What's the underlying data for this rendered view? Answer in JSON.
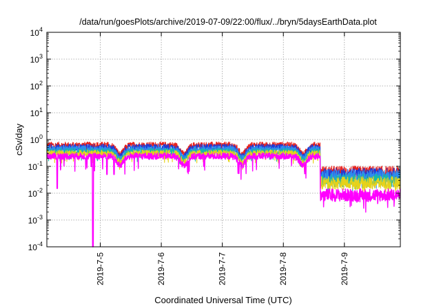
{
  "chart_data": {
    "type": "line",
    "title": "/data/run/goesPlots/archive/2019-07-09/22:00/flux/../bryn/5daysEarthData.plot",
    "xlabel": "Coordinated Universal Time (UTC)",
    "ylabel": "cSv/day",
    "yscale": "log",
    "ylim": [
      0.0001,
      10000
    ],
    "xlim": [
      "2019-07-04T03:00",
      "2019-07-09T22:00"
    ],
    "grid": true,
    "x_ticks": [
      "2019-7-5",
      "2019-7-6",
      "2019-7-7",
      "2019-7-8",
      "2019-7-9"
    ],
    "y_ticks": [
      {
        "base": "10",
        "exp": "-4"
      },
      {
        "base": "10",
        "exp": "-3"
      },
      {
        "base": "10",
        "exp": "-2"
      },
      {
        "base": "10",
        "exp": "-1"
      },
      {
        "base": "10",
        "exp": "0"
      },
      {
        "base": "10",
        "exp": "1"
      },
      {
        "base": "10",
        "exp": "2"
      },
      {
        "base": "10",
        "exp": "3"
      },
      {
        "base": "10",
        "exp": "4"
      }
    ],
    "step_time": "2019-07-08T14:30",
    "series": [
      {
        "color": "#e8211c",
        "level_before": 0.62,
        "level_after": 0.06
      },
      {
        "color": "#1e3bd6",
        "level_before": 0.52,
        "level_after": 0.05
      },
      {
        "color": "#2f8cf0",
        "level_before": 0.44,
        "level_after": 0.042
      },
      {
        "color": "#19b8a8",
        "level_before": 0.36,
        "level_after": 0.03
      },
      {
        "color": "#e6d21a",
        "level_before": 0.31,
        "level_after": 0.024
      },
      {
        "color": "#ff00ff",
        "level_before": 0.24,
        "level_after": 0.0085
      }
    ]
  }
}
